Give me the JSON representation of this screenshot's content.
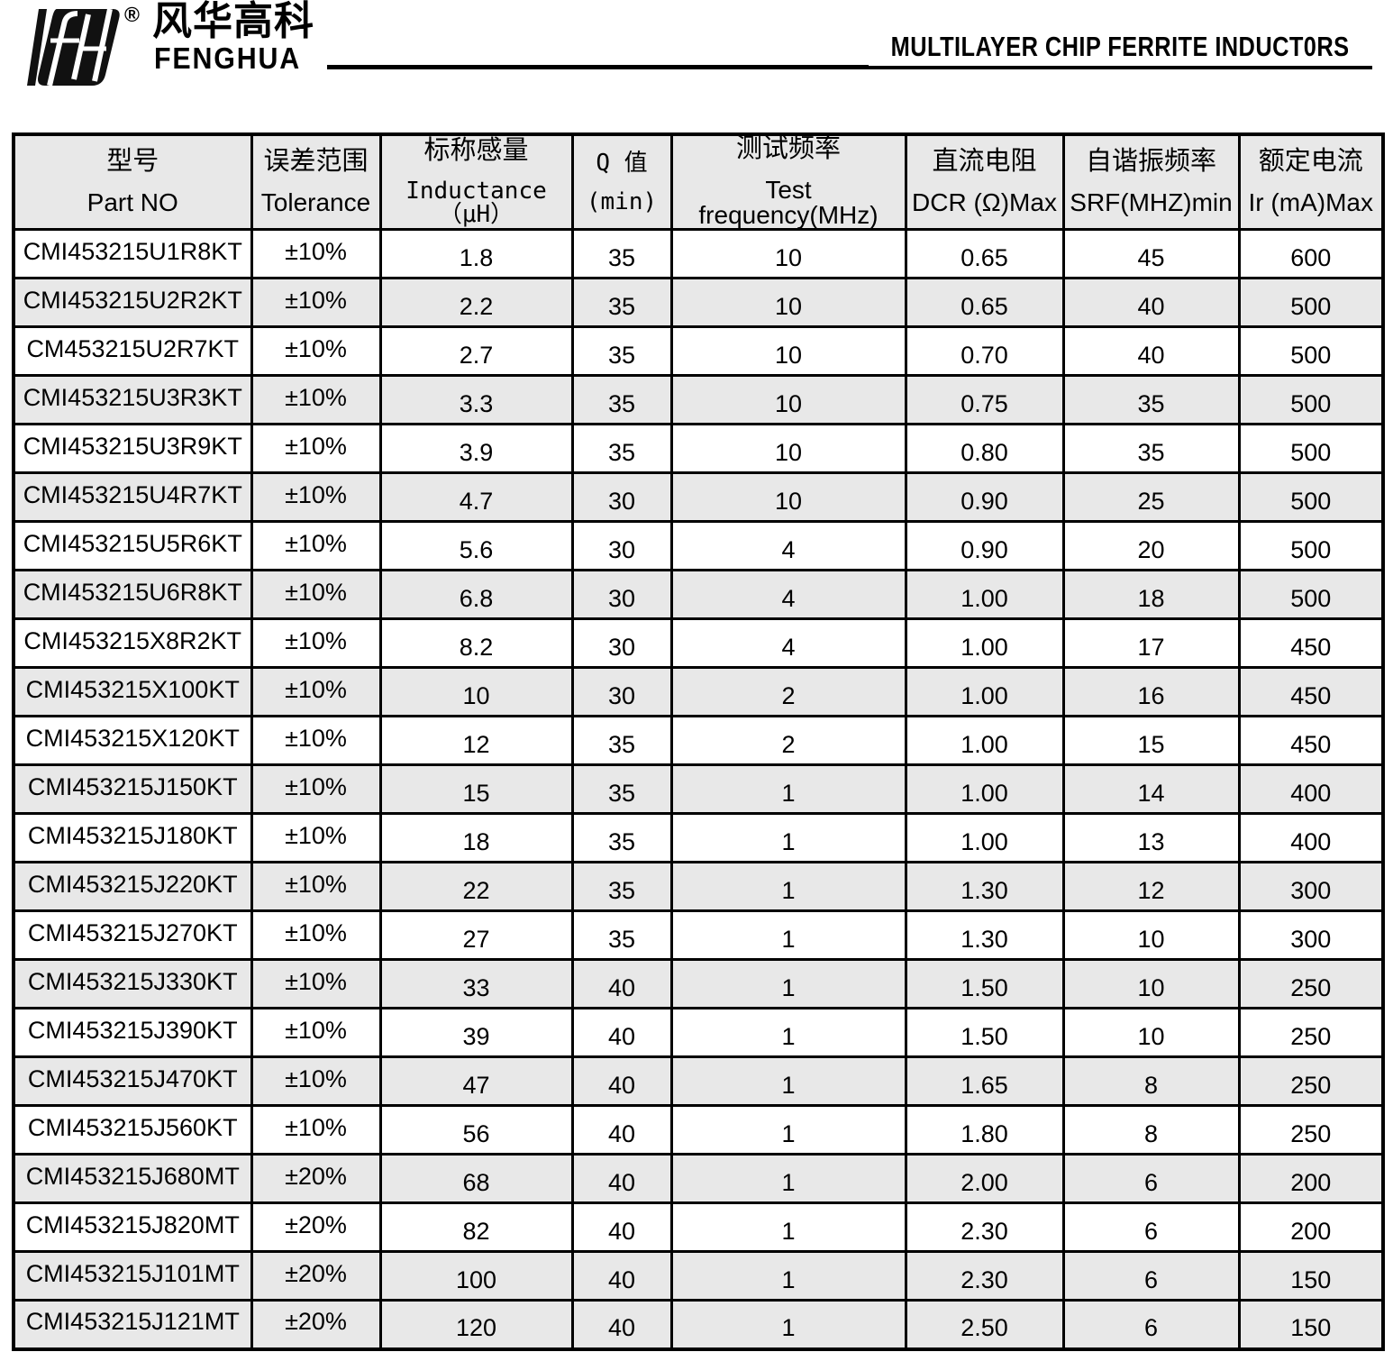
{
  "brand": {
    "registered": "®",
    "name_cn": "风华高科",
    "name_en": "FENGHUA"
  },
  "title": "MULTILAYER CHIP FERRITE INDUCT0RS",
  "colors": {
    "shaded_row_bg": "#e8e8e8",
    "border": "#000000",
    "text": "#000000"
  },
  "table": {
    "columns": [
      {
        "cn": "型号",
        "en": "Part NO"
      },
      {
        "cn": "误差范围",
        "en": "Tolerance"
      },
      {
        "cn": "标称感量",
        "en": "Inductance（μH）"
      },
      {
        "cn": "Q 值",
        "en": "(min)"
      },
      {
        "cn": "测试频率",
        "en": "Test frequency(MHz)"
      },
      {
        "cn": "直流电阻",
        "en": "DCR (Ω)Max"
      },
      {
        "cn": "自谐振频率",
        "en": "SRF(MHZ)min"
      },
      {
        "cn": "额定电流",
        "en": "Ir (mA)Max"
      }
    ],
    "rows": [
      [
        "CMI453215U1R8KT",
        "±10%",
        "1.8",
        "35",
        "10",
        "0.65",
        "45",
        "600"
      ],
      [
        "CMI453215U2R2KT",
        "±10%",
        "2.2",
        "35",
        "10",
        "0.65",
        "40",
        "500"
      ],
      [
        "CM453215U2R7KT",
        "±10%",
        "2.7",
        "35",
        "10",
        "0.70",
        "40",
        "500"
      ],
      [
        "CMI453215U3R3KT",
        "±10%",
        "3.3",
        "35",
        "10",
        "0.75",
        "35",
        "500"
      ],
      [
        "CMI453215U3R9KT",
        "±10%",
        "3.9",
        "35",
        "10",
        "0.80",
        "35",
        "500"
      ],
      [
        "CMI453215U4R7KT",
        "±10%",
        "4.7",
        "30",
        "10",
        "0.90",
        "25",
        "500"
      ],
      [
        "CMI453215U5R6KT",
        "±10%",
        "5.6",
        "30",
        "4",
        "0.90",
        "20",
        "500"
      ],
      [
        "CMI453215U6R8KT",
        "±10%",
        "6.8",
        "30",
        "4",
        "1.00",
        "18",
        "500"
      ],
      [
        "CMI453215X8R2KT",
        "±10%",
        "8.2",
        "30",
        "4",
        "1.00",
        "17",
        "450"
      ],
      [
        "CMI453215X100KT",
        "±10%",
        "10",
        "30",
        "2",
        "1.00",
        "16",
        "450"
      ],
      [
        "CMI453215X120KT",
        "±10%",
        "12",
        "35",
        "2",
        "1.00",
        "15",
        "450"
      ],
      [
        "CMI453215J150KT",
        "±10%",
        "15",
        "35",
        "1",
        "1.00",
        "14",
        "400"
      ],
      [
        "CMI453215J180KT",
        "±10%",
        "18",
        "35",
        "1",
        "1.00",
        "13",
        "400"
      ],
      [
        "CMI453215J220KT",
        "±10%",
        "22",
        "35",
        "1",
        "1.30",
        "12",
        "300"
      ],
      [
        "CMI453215J270KT",
        "±10%",
        "27",
        "35",
        "1",
        "1.30",
        "10",
        "300"
      ],
      [
        "CMI453215J330KT",
        "±10%",
        "33",
        "40",
        "1",
        "1.50",
        "10",
        "250"
      ],
      [
        "CMI453215J390KT",
        "±10%",
        "39",
        "40",
        "1",
        "1.50",
        "10",
        "250"
      ],
      [
        "CMI453215J470KT",
        "±10%",
        "47",
        "40",
        "1",
        "1.65",
        "8",
        "250"
      ],
      [
        "CMI453215J560KT",
        "±10%",
        "56",
        "40",
        "1",
        "1.80",
        "8",
        "250"
      ],
      [
        "CMI453215J680MT",
        "±20%",
        "68",
        "40",
        "1",
        "2.00",
        "6",
        "200"
      ],
      [
        "CMI453215J820MT",
        "±20%",
        "82",
        "40",
        "1",
        "2.30",
        "6",
        "200"
      ],
      [
        "CMI453215J101MT",
        "±20%",
        "100",
        "40",
        "1",
        "2.30",
        "6",
        "150"
      ],
      [
        "CMI453215J121MT",
        "±20%",
        "120",
        "40",
        "1",
        "2.50",
        "6",
        "150"
      ]
    ]
  }
}
